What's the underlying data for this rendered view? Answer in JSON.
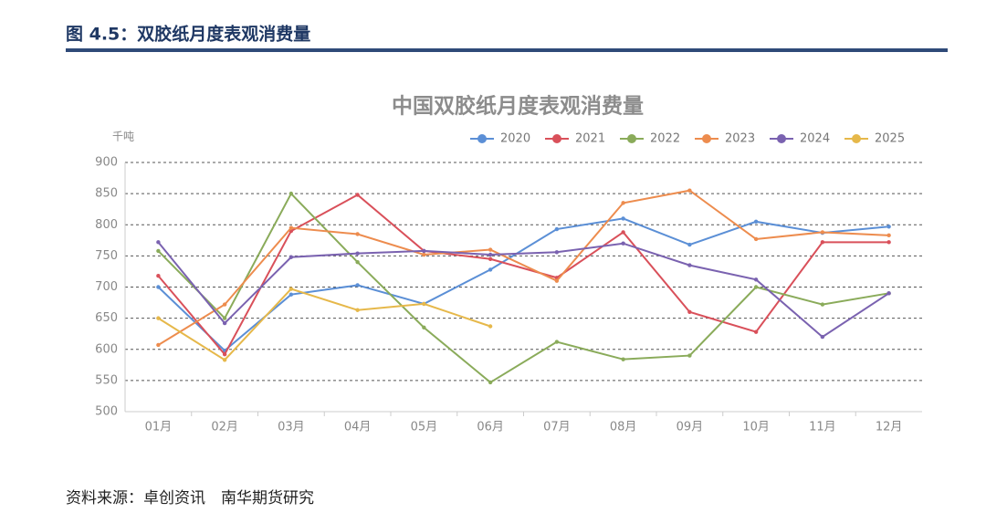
{
  "header": {
    "title": "图 4.5：双胶纸月度表观消费量"
  },
  "source": "资料来源：卓创资讯　南华期货研究",
  "chart_data": {
    "type": "line",
    "title": "中国双胶纸月度表观消费量",
    "y_label": "千吨",
    "categories": [
      "01月",
      "02月",
      "03月",
      "04月",
      "05月",
      "06月",
      "07月",
      "08月",
      "09月",
      "10月",
      "11月",
      "12月"
    ],
    "series": [
      {
        "name": "2020",
        "color": "#5b8fd6",
        "values": [
          700,
          598,
          688,
          703,
          673,
          728,
          793,
          810,
          768,
          805,
          787,
          797
        ]
      },
      {
        "name": "2021",
        "color": "#d9505a",
        "values": [
          718,
          592,
          790,
          848,
          758,
          745,
          715,
          788,
          660,
          628,
          772,
          772
        ]
      },
      {
        "name": "2022",
        "color": "#8aab5a",
        "values": [
          758,
          650,
          850,
          740,
          635,
          547,
          612,
          584,
          590,
          700,
          672,
          690
        ]
      },
      {
        "name": "2023",
        "color": "#ed8c4e",
        "values": [
          607,
          672,
          795,
          785,
          752,
          760,
          710,
          835,
          855,
          777,
          788,
          783
        ]
      },
      {
        "name": "2024",
        "color": "#7a62b0",
        "values": [
          772,
          642,
          748,
          754,
          758,
          752,
          756,
          770,
          735,
          712,
          620,
          690
        ]
      },
      {
        "name": "2025",
        "color": "#e6b84a",
        "values": [
          650,
          583,
          697,
          663,
          673,
          637,
          null,
          null,
          null,
          null,
          null,
          null
        ]
      }
    ],
    "ylim": [
      500,
      900
    ],
    "yticks": [
      500,
      550,
      600,
      650,
      700,
      750,
      800,
      850,
      900
    ],
    "grid": true,
    "legend": "top-right"
  }
}
